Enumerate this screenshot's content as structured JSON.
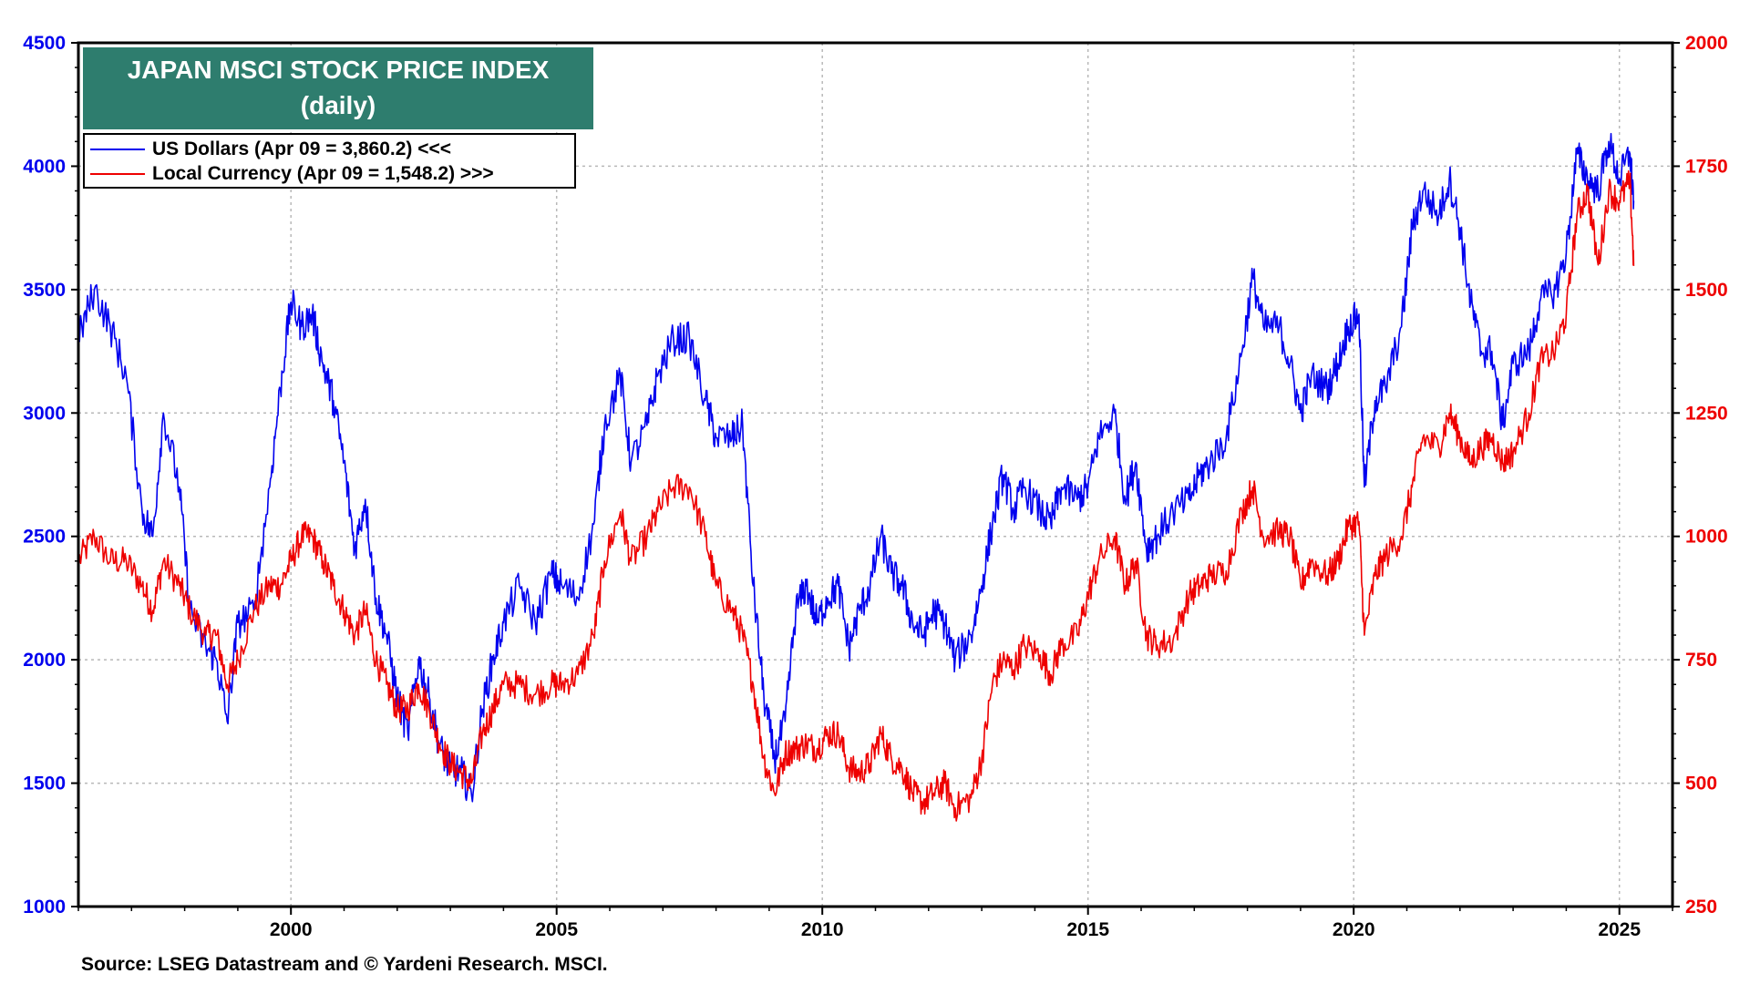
{
  "chart_data": {
    "type": "line",
    "title": "JAPAN MSCI STOCK PRICE INDEX",
    "subtitle": "(daily)",
    "source": "Source: LSEG Datastream and © Yardeni Research. MSCI.",
    "x_ticks": [
      "2000",
      "2005",
      "2010",
      "2015",
      "2020",
      "2025"
    ],
    "x_tick_values": [
      2000,
      2005,
      2010,
      2015,
      2020,
      2025
    ],
    "xlim": [
      1996.0,
      2026.0
    ],
    "y_left": {
      "ticks": [
        "4500",
        "4000",
        "3500",
        "3000",
        "2500",
        "2000",
        "1500",
        "1000"
      ],
      "lim": [
        1000,
        4500
      ],
      "color": "#0000ee"
    },
    "y_right": {
      "ticks": [
        "2000",
        "1750",
        "1500",
        "1250",
        "1000",
        "750",
        "500",
        "250"
      ],
      "lim": [
        250,
        2000
      ],
      "color": "#ee0000"
    },
    "series": [
      {
        "name": "US Dollars (Apr 09 = 3,860.2) <<<",
        "axis": "left",
        "color": "#0000ee",
        "points": [
          [
            1996.0,
            3300
          ],
          [
            1996.3,
            3500
          ],
          [
            1996.6,
            3350
          ],
          [
            1996.9,
            3150
          ],
          [
            1997.2,
            2600
          ],
          [
            1997.4,
            2500
          ],
          [
            1997.6,
            3000
          ],
          [
            1997.9,
            2700
          ],
          [
            1998.1,
            2200
          ],
          [
            1998.4,
            2050
          ],
          [
            1998.6,
            2000
          ],
          [
            1998.8,
            1750
          ],
          [
            1999.0,
            2150
          ],
          [
            1999.3,
            2200
          ],
          [
            1999.6,
            2700
          ],
          [
            1999.8,
            3100
          ],
          [
            2000.0,
            3450
          ],
          [
            2000.2,
            3350
          ],
          [
            2000.4,
            3400
          ],
          [
            2000.6,
            3200
          ],
          [
            2000.8,
            3050
          ],
          [
            2001.0,
            2800
          ],
          [
            2001.2,
            2450
          ],
          [
            2001.4,
            2650
          ],
          [
            2001.6,
            2250
          ],
          [
            2001.8,
            2100
          ],
          [
            2002.0,
            1850
          ],
          [
            2002.2,
            1700
          ],
          [
            2002.4,
            2000
          ],
          [
            2002.6,
            1850
          ],
          [
            2002.8,
            1650
          ],
          [
            2003.0,
            1550
          ],
          [
            2003.2,
            1550
          ],
          [
            2003.4,
            1450
          ],
          [
            2003.6,
            1800
          ],
          [
            2003.8,
            2000
          ],
          [
            2004.0,
            2150
          ],
          [
            2004.3,
            2300
          ],
          [
            2004.6,
            2150
          ],
          [
            2004.9,
            2350
          ],
          [
            2005.1,
            2300
          ],
          [
            2005.4,
            2250
          ],
          [
            2005.7,
            2550
          ],
          [
            2005.9,
            2950
          ],
          [
            2006.2,
            3150
          ],
          [
            2006.4,
            2800
          ],
          [
            2006.7,
            2950
          ],
          [
            2006.9,
            3150
          ],
          [
            2007.2,
            3300
          ],
          [
            2007.5,
            3300
          ],
          [
            2007.8,
            3050
          ],
          [
            2008.0,
            2900
          ],
          [
            2008.3,
            2900
          ],
          [
            2008.5,
            2950
          ],
          [
            2008.7,
            2300
          ],
          [
            2008.9,
            1850
          ],
          [
            2009.1,
            1600
          ],
          [
            2009.3,
            1750
          ],
          [
            2009.5,
            2200
          ],
          [
            2009.7,
            2300
          ],
          [
            2009.9,
            2150
          ],
          [
            2010.1,
            2250
          ],
          [
            2010.3,
            2300
          ],
          [
            2010.5,
            2050
          ],
          [
            2010.7,
            2200
          ],
          [
            2010.9,
            2300
          ],
          [
            2011.1,
            2500
          ],
          [
            2011.3,
            2350
          ],
          [
            2011.5,
            2300
          ],
          [
            2011.7,
            2150
          ],
          [
            2011.9,
            2100
          ],
          [
            2012.1,
            2200
          ],
          [
            2012.3,
            2150
          ],
          [
            2012.5,
            2000
          ],
          [
            2012.8,
            2100
          ],
          [
            2013.0,
            2300
          ],
          [
            2013.2,
            2550
          ],
          [
            2013.4,
            2750
          ],
          [
            2013.6,
            2600
          ],
          [
            2013.8,
            2700
          ],
          [
            2014.1,
            2600
          ],
          [
            2014.3,
            2550
          ],
          [
            2014.5,
            2700
          ],
          [
            2014.8,
            2650
          ],
          [
            2015.0,
            2700
          ],
          [
            2015.2,
            2900
          ],
          [
            2015.5,
            3000
          ],
          [
            2015.7,
            2650
          ],
          [
            2015.9,
            2800
          ],
          [
            2016.1,
            2450
          ],
          [
            2016.3,
            2500
          ],
          [
            2016.6,
            2600
          ],
          [
            2016.9,
            2650
          ],
          [
            2017.1,
            2750
          ],
          [
            2017.3,
            2800
          ],
          [
            2017.6,
            2900
          ],
          [
            2017.9,
            3250
          ],
          [
            2018.1,
            3550
          ],
          [
            2018.3,
            3350
          ],
          [
            2018.6,
            3350
          ],
          [
            2018.8,
            3200
          ],
          [
            2019.0,
            3000
          ],
          [
            2019.2,
            3150
          ],
          [
            2019.5,
            3100
          ],
          [
            2019.7,
            3200
          ],
          [
            2019.9,
            3350
          ],
          [
            2020.1,
            3400
          ],
          [
            2020.2,
            2700
          ],
          [
            2020.4,
            3050
          ],
          [
            2020.6,
            3100
          ],
          [
            2020.9,
            3350
          ],
          [
            2021.1,
            3750
          ],
          [
            2021.3,
            3900
          ],
          [
            2021.6,
            3800
          ],
          [
            2021.8,
            3950
          ],
          [
            2022.0,
            3750
          ],
          [
            2022.2,
            3450
          ],
          [
            2022.4,
            3250
          ],
          [
            2022.6,
            3250
          ],
          [
            2022.8,
            2950
          ],
          [
            2023.0,
            3200
          ],
          [
            2023.3,
            3250
          ],
          [
            2023.5,
            3450
          ],
          [
            2023.8,
            3500
          ],
          [
            2024.0,
            3650
          ],
          [
            2024.2,
            4050
          ],
          [
            2024.4,
            3950
          ],
          [
            2024.6,
            3900
          ],
          [
            2024.8,
            4100
          ],
          [
            2025.0,
            3950
          ],
          [
            2025.2,
            4050
          ],
          [
            2025.27,
            3860
          ]
        ]
      },
      {
        "name": "Local Currency (Apr 09 = 1,548.2) >>>",
        "axis": "right",
        "color": "#ee0000",
        "points": [
          [
            1996.0,
            950
          ],
          [
            1996.3,
            1000
          ],
          [
            1996.6,
            950
          ],
          [
            1996.9,
            950
          ],
          [
            1997.2,
            900
          ],
          [
            1997.4,
            850
          ],
          [
            1997.6,
            950
          ],
          [
            1997.9,
            900
          ],
          [
            1998.1,
            850
          ],
          [
            1998.4,
            800
          ],
          [
            1998.6,
            800
          ],
          [
            1998.8,
            700
          ],
          [
            1999.0,
            750
          ],
          [
            1999.3,
            850
          ],
          [
            1999.6,
            900
          ],
          [
            1999.8,
            900
          ],
          [
            2000.0,
            950
          ],
          [
            2000.2,
            1000
          ],
          [
            2000.4,
            1000
          ],
          [
            2000.6,
            950
          ],
          [
            2000.8,
            900
          ],
          [
            2001.0,
            850
          ],
          [
            2001.2,
            800
          ],
          [
            2001.4,
            850
          ],
          [
            2001.6,
            750
          ],
          [
            2001.8,
            700
          ],
          [
            2002.0,
            650
          ],
          [
            2002.2,
            650
          ],
          [
            2002.4,
            700
          ],
          [
            2002.6,
            650
          ],
          [
            2002.8,
            580
          ],
          [
            2003.0,
            540
          ],
          [
            2003.2,
            520
          ],
          [
            2003.4,
            500
          ],
          [
            2003.6,
            600
          ],
          [
            2003.8,
            650
          ],
          [
            2004.0,
            700
          ],
          [
            2004.3,
            700
          ],
          [
            2004.6,
            680
          ],
          [
            2004.9,
            700
          ],
          [
            2005.1,
            700
          ],
          [
            2005.4,
            720
          ],
          [
            2005.7,
            800
          ],
          [
            2005.9,
            950
          ],
          [
            2006.2,
            1050
          ],
          [
            2006.4,
            950
          ],
          [
            2006.7,
            1000
          ],
          [
            2006.9,
            1050
          ],
          [
            2007.2,
            1100
          ],
          [
            2007.5,
            1100
          ],
          [
            2007.8,
            1000
          ],
          [
            2008.0,
            900
          ],
          [
            2008.3,
            850
          ],
          [
            2008.5,
            800
          ],
          [
            2008.7,
            700
          ],
          [
            2008.9,
            550
          ],
          [
            2009.1,
            480
          ],
          [
            2009.3,
            560
          ],
          [
            2009.5,
            570
          ],
          [
            2009.7,
            580
          ],
          [
            2009.9,
            570
          ],
          [
            2010.1,
            600
          ],
          [
            2010.3,
            600
          ],
          [
            2010.5,
            530
          ],
          [
            2010.7,
            520
          ],
          [
            2010.9,
            540
          ],
          [
            2011.1,
            600
          ],
          [
            2011.3,
            550
          ],
          [
            2011.5,
            530
          ],
          [
            2011.7,
            480
          ],
          [
            2011.9,
            460
          ],
          [
            2012.1,
            480
          ],
          [
            2012.3,
            500
          ],
          [
            2012.5,
            450
          ],
          [
            2012.8,
            470
          ],
          [
            2013.0,
            550
          ],
          [
            2013.2,
            700
          ],
          [
            2013.4,
            750
          ],
          [
            2013.6,
            730
          ],
          [
            2013.8,
            780
          ],
          [
            2014.1,
            760
          ],
          [
            2014.3,
            720
          ],
          [
            2014.5,
            780
          ],
          [
            2014.8,
            800
          ],
          [
            2015.0,
            880
          ],
          [
            2015.2,
            950
          ],
          [
            2015.5,
            1000
          ],
          [
            2015.7,
            900
          ],
          [
            2015.9,
            950
          ],
          [
            2016.1,
            800
          ],
          [
            2016.3,
            780
          ],
          [
            2016.6,
            790
          ],
          [
            2016.9,
            880
          ],
          [
            2017.1,
            900
          ],
          [
            2017.3,
            920
          ],
          [
            2017.6,
            930
          ],
          [
            2017.9,
            1050
          ],
          [
            2018.1,
            1100
          ],
          [
            2018.3,
            1000
          ],
          [
            2018.6,
            1010
          ],
          [
            2018.8,
            1000
          ],
          [
            2019.0,
            900
          ],
          [
            2019.2,
            950
          ],
          [
            2019.5,
            920
          ],
          [
            2019.7,
            950
          ],
          [
            2019.9,
            1020
          ],
          [
            2020.1,
            1030
          ],
          [
            2020.2,
            800
          ],
          [
            2020.4,
            920
          ],
          [
            2020.6,
            960
          ],
          [
            2020.9,
            1000
          ],
          [
            2021.1,
            1100
          ],
          [
            2021.3,
            1200
          ],
          [
            2021.6,
            1180
          ],
          [
            2021.8,
            1250
          ],
          [
            2022.0,
            1200
          ],
          [
            2022.2,
            1150
          ],
          [
            2022.4,
            1180
          ],
          [
            2022.6,
            1200
          ],
          [
            2022.8,
            1150
          ],
          [
            2023.0,
            1170
          ],
          [
            2023.3,
            1250
          ],
          [
            2023.5,
            1350
          ],
          [
            2023.8,
            1380
          ],
          [
            2024.0,
            1450
          ],
          [
            2024.2,
            1650
          ],
          [
            2024.4,
            1700
          ],
          [
            2024.6,
            1550
          ],
          [
            2024.8,
            1700
          ],
          [
            2025.0,
            1680
          ],
          [
            2025.2,
            1720
          ],
          [
            2025.27,
            1548
          ]
        ]
      }
    ]
  }
}
